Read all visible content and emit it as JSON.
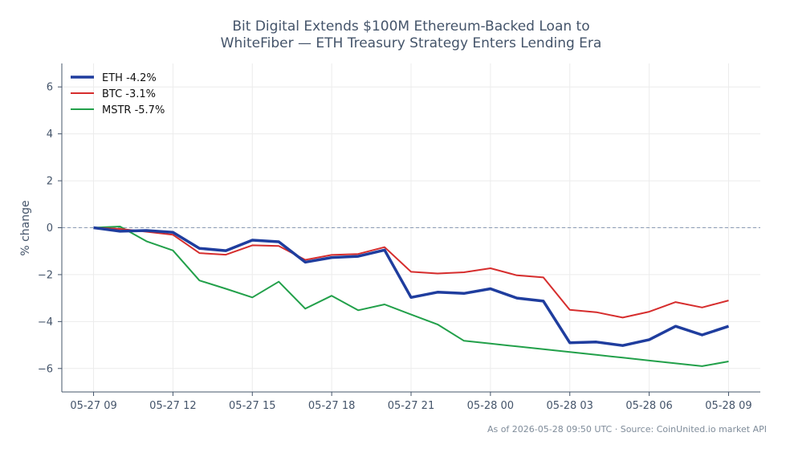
{
  "chart_data": {
    "type": "line",
    "title_line1": "Bit Digital Extends $100M Ethereum-Backed Loan to",
    "title_line2": "WhiteFiber — ETH Treasury Strategy Enters Lending Era",
    "ylabel": "% change",
    "ylim": [
      -7,
      7
    ],
    "yticks": [
      -6,
      -4,
      -2,
      0,
      2,
      4,
      6
    ],
    "ytick_labels": [
      "−6",
      "−4",
      "−2",
      "0",
      "2",
      "4",
      "6"
    ],
    "x_hours": [
      0,
      1,
      2,
      3,
      4,
      5,
      6,
      7,
      8,
      9,
      10,
      11,
      12,
      13,
      14,
      15,
      16,
      17,
      18,
      19,
      20,
      21,
      22,
      23,
      24
    ],
    "xlim": [
      -1.2,
      25.2
    ],
    "xticks": [
      0,
      3,
      6,
      9,
      12,
      15,
      18,
      21,
      24
    ],
    "xtick_labels": [
      "05-27 09",
      "05-27 12",
      "05-27 15",
      "05-27 18",
      "05-27 21",
      "05-28 00",
      "05-28 03",
      "05-28 06",
      "05-28 09"
    ],
    "grid": true,
    "legend_position": "top-left",
    "zero_line": true,
    "series": [
      {
        "name": "ETH -4.2%",
        "color": "#1f3d9e",
        "width": 3.5,
        "values": [
          0,
          -0.15,
          -0.12,
          -0.2,
          -0.88,
          -0.98,
          -0.53,
          -0.6,
          -1.47,
          -1.27,
          -1.22,
          -0.95,
          -2.97,
          -2.75,
          -2.8,
          -2.6,
          -3.0,
          -3.13,
          -4.9,
          -4.87,
          -5.02,
          -4.77,
          -4.2,
          -4.57,
          -4.2
        ]
      },
      {
        "name": "BTC -3.1%",
        "color": "#d62d2d",
        "width": 2,
        "values": [
          0,
          -0.05,
          -0.17,
          -0.3,
          -1.08,
          -1.15,
          -0.75,
          -0.78,
          -1.37,
          -1.16,
          -1.12,
          -0.83,
          -1.88,
          -1.95,
          -1.9,
          -1.73,
          -2.03,
          -2.12,
          -3.5,
          -3.6,
          -3.83,
          -3.58,
          -3.17,
          -3.4,
          -3.1
        ]
      },
      {
        "name": "MSTR -5.7%",
        "color": "#22a04a",
        "width": 2,
        "values": [
          0,
          0.05,
          -0.58,
          -0.97,
          -2.25,
          -2.6,
          -2.97,
          -2.3,
          -3.45,
          -2.9,
          -3.52,
          -3.27,
          -3.7,
          -4.12,
          -4.82,
          -4.94,
          -5.06,
          -5.18,
          -5.3,
          -5.42,
          -5.54,
          -5.66,
          -5.78,
          -5.9,
          -5.7
        ]
      }
    ]
  },
  "footer": "As of 2026-05-28 09:50 UTC · Source: CoinUnited.io market API"
}
